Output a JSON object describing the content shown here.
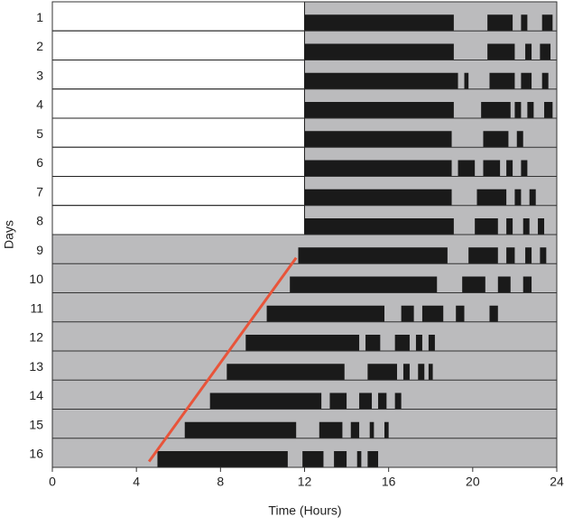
{
  "chart_data": {
    "type": "actogram",
    "xlabel": "Time (Hours)",
    "ylabel": "Days",
    "xlim": [
      0,
      24
    ],
    "xticks": [
      0,
      4,
      8,
      12,
      16,
      20,
      24
    ],
    "bar_color": "#1a1a1a",
    "dark_color": "#bbbbbd",
    "light_color": "#ffffff",
    "series": [
      {
        "name": "1",
        "light": [
          0,
          12
        ],
        "values": [
          [
            12,
            19.1
          ],
          [
            20.7,
            21.9
          ],
          [
            22.3,
            22.6
          ],
          [
            23.3,
            23.8
          ]
        ]
      },
      {
        "name": "2",
        "light": [
          0,
          12
        ],
        "values": [
          [
            12,
            19.1
          ],
          [
            20.7,
            22.0
          ],
          [
            22.5,
            22.8
          ],
          [
            23.2,
            23.7
          ]
        ]
      },
      {
        "name": "3",
        "light": [
          0,
          12
        ],
        "values": [
          [
            12,
            19.3
          ],
          [
            19.6,
            19.8
          ],
          [
            20.8,
            22.0
          ],
          [
            22.3,
            22.8
          ],
          [
            23.3,
            23.6
          ]
        ]
      },
      {
        "name": "4",
        "light": [
          0,
          12
        ],
        "values": [
          [
            12,
            19.1
          ],
          [
            20.4,
            21.8
          ],
          [
            22.0,
            22.3
          ],
          [
            22.6,
            22.9
          ],
          [
            23.4,
            23.8
          ]
        ]
      },
      {
        "name": "5",
        "light": [
          0,
          12
        ],
        "values": [
          [
            12,
            19.0
          ],
          [
            20.5,
            21.7
          ],
          [
            22.1,
            22.4
          ]
        ]
      },
      {
        "name": "6",
        "light": [
          0,
          12
        ],
        "values": [
          [
            12,
            19.0
          ],
          [
            19.3,
            20.1
          ],
          [
            20.5,
            21.3
          ],
          [
            21.6,
            21.9
          ],
          [
            22.3,
            22.6
          ]
        ]
      },
      {
        "name": "7",
        "light": [
          0,
          12
        ],
        "values": [
          [
            12,
            19.0
          ],
          [
            20.2,
            21.6
          ],
          [
            22.0,
            22.3
          ],
          [
            22.7,
            23.0
          ]
        ]
      },
      {
        "name": "8",
        "light": [
          0,
          12
        ],
        "values": [
          [
            12,
            19.1
          ],
          [
            20.1,
            21.2
          ],
          [
            21.6,
            21.9
          ],
          [
            22.4,
            22.7
          ],
          [
            23.1,
            23.4
          ]
        ]
      },
      {
        "name": "9",
        "values": [
          [
            11.7,
            18.8
          ],
          [
            19.8,
            21.2
          ],
          [
            21.6,
            22.0
          ],
          [
            22.5,
            22.8
          ],
          [
            23.2,
            23.5
          ]
        ]
      },
      {
        "name": "10",
        "values": [
          [
            11.3,
            18.3
          ],
          [
            19.5,
            20.6
          ],
          [
            21.2,
            21.8
          ],
          [
            22.4,
            22.8
          ]
        ]
      },
      {
        "name": "11",
        "values": [
          [
            10.2,
            15.8
          ],
          [
            16.6,
            17.2
          ],
          [
            17.6,
            18.6
          ],
          [
            19.2,
            19.6
          ],
          [
            20.8,
            21.2
          ]
        ]
      },
      {
        "name": "12",
        "values": [
          [
            9.2,
            14.6
          ],
          [
            14.9,
            15.6
          ],
          [
            16.3,
            17.0
          ],
          [
            17.3,
            17.6
          ],
          [
            17.9,
            18.2
          ]
        ]
      },
      {
        "name": "13",
        "values": [
          [
            8.3,
            13.9
          ],
          [
            15.0,
            16.4
          ],
          [
            16.7,
            17.0
          ],
          [
            17.4,
            17.7
          ],
          [
            17.9,
            18.1
          ]
        ]
      },
      {
        "name": "14",
        "values": [
          [
            7.5,
            12.8
          ],
          [
            13.2,
            14.0
          ],
          [
            14.6,
            15.2
          ],
          [
            15.5,
            15.9
          ],
          [
            16.3,
            16.6
          ]
        ]
      },
      {
        "name": "15",
        "values": [
          [
            6.3,
            11.6
          ],
          [
            12.7,
            13.8
          ],
          [
            14.2,
            14.6
          ],
          [
            15.1,
            15.3
          ],
          [
            15.8,
            16.0
          ]
        ]
      },
      {
        "name": "16",
        "values": [
          [
            5.0,
            11.2
          ],
          [
            11.9,
            12.9
          ],
          [
            13.4,
            14.0
          ],
          [
            14.5,
            14.7
          ],
          [
            15.0,
            15.5
          ]
        ]
      }
    ],
    "onset_line": {
      "x": [
        4.6,
        11.6
      ],
      "days": [
        16,
        9
      ],
      "color": "#e8543a"
    }
  }
}
